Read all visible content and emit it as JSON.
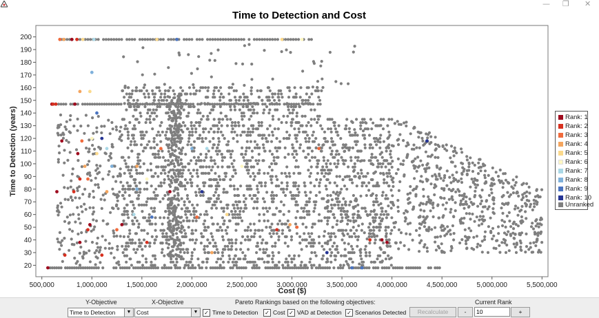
{
  "window": {
    "minimize_glyph": "—",
    "restore_glyph": "❐",
    "close_glyph": "✕"
  },
  "chart_data": {
    "type": "scatter",
    "title": "Time to Detection and Cost",
    "xlabel": "Cost ($)",
    "ylabel": "Time to Detection (years)",
    "xlim": [
      440000,
      5560000
    ],
    "ylim": [
      11,
      209
    ],
    "x_ticks": [
      500000,
      1000000,
      1500000,
      2000000,
      2500000,
      3000000,
      3500000,
      4000000,
      4500000,
      5000000,
      5500000
    ],
    "x_tick_labels": [
      "500,000",
      "1,000,000",
      "1,500,000",
      "2,000,000",
      "2,500,000",
      "3,000,000",
      "3,500,000",
      "4,000,000",
      "4,500,000",
      "5,000,000",
      "5,500,000"
    ],
    "y_ticks": [
      20,
      30,
      40,
      50,
      60,
      70,
      80,
      90,
      100,
      110,
      120,
      130,
      140,
      150,
      160,
      170,
      180,
      190,
      200
    ],
    "grid": false,
    "legend_position": "right",
    "series": [
      {
        "name": "Rank: 1",
        "color": "#9e0b1e",
        "points": [
          [
            560000,
            18
          ],
          [
            600000,
            147
          ],
          [
            650000,
            78
          ],
          [
            700000,
            118
          ],
          [
            800000,
            198
          ],
          [
            830000,
            147
          ],
          [
            860000,
            108
          ],
          [
            880000,
            38
          ],
          [
            980000,
            52
          ],
          [
            1300000,
            52
          ],
          [
            1780000,
            78
          ],
          [
            3900000,
            40
          ],
          [
            3950000,
            38
          ]
        ]
      },
      {
        "name": "Rank: 2",
        "color": "#d7301f",
        "points": [
          [
            610000,
            147
          ],
          [
            640000,
            147
          ],
          [
            730000,
            28
          ],
          [
            820000,
            78
          ],
          [
            850000,
            198
          ],
          [
            880000,
            88
          ],
          [
            960000,
            48
          ],
          [
            1100000,
            28
          ],
          [
            1550000,
            38
          ],
          [
            2850000,
            48
          ],
          [
            3780000,
            40
          ]
        ]
      },
      {
        "name": "Rank: 3",
        "color": "#f06a3c",
        "points": [
          [
            680000,
            198
          ],
          [
            900000,
            118
          ],
          [
            960000,
            88
          ],
          [
            1250000,
            48
          ],
          [
            1690000,
            112
          ],
          [
            2050000,
            58
          ],
          [
            3050000,
            50
          ],
          [
            3270000,
            112
          ]
        ]
      },
      {
        "name": "Rank: 4",
        "color": "#f4a55e",
        "points": [
          [
            720000,
            198
          ],
          [
            880000,
            157
          ],
          [
            930000,
            98
          ],
          [
            1150000,
            78
          ],
          [
            1450000,
            98
          ],
          [
            2200000,
            30
          ],
          [
            2980000,
            52
          ]
        ]
      },
      {
        "name": "Rank: 5",
        "color": "#fbd98c",
        "points": [
          [
            910000,
            198
          ],
          [
            980000,
            157
          ],
          [
            1050000,
            108
          ],
          [
            1650000,
            198
          ],
          [
            2350000,
            60
          ],
          [
            2900000,
            198
          ]
        ]
      },
      {
        "name": "Rank: 6",
        "color": "#fff7c2",
        "points": [
          [
            1000000,
            120
          ],
          [
            1550000,
            88
          ],
          [
            2500000,
            98
          ],
          [
            3100000,
            198
          ]
        ]
      },
      {
        "name": "Rank: 7",
        "color": "#aad8e6",
        "points": [
          [
            1020000,
            198
          ],
          [
            1150000,
            112
          ],
          [
            1420000,
            60
          ],
          [
            2150000,
            112
          ]
        ]
      },
      {
        "name": "Rank: 8",
        "color": "#7fb1db",
        "points": [
          [
            1000000,
            172
          ],
          [
            1200000,
            98
          ],
          [
            1450000,
            80
          ],
          [
            2000000,
            112
          ]
        ]
      },
      {
        "name": "Rank: 9",
        "color": "#4a74c0",
        "points": [
          [
            1050000,
            140
          ],
          [
            1600000,
            58
          ],
          [
            1850000,
            198
          ],
          [
            3600000,
            18
          ],
          [
            3700000,
            18
          ]
        ]
      },
      {
        "name": "Rank: 10",
        "color": "#253494",
        "points": [
          [
            1100000,
            120
          ],
          [
            2100000,
            78
          ],
          [
            3350000,
            30
          ],
          [
            4350000,
            118
          ]
        ]
      },
      {
        "name": "Unranked",
        "color": "#7f7f7f",
        "note": "several thousand grey points, dense band 1,300,000–4,000,000 and 20–160 years; horizontal rows at 18, 147 and 198 years"
      }
    ]
  },
  "controls": {
    "y_objective_label": "Y-Objective",
    "y_objective_value": "Time to Detection",
    "x_objective_label": "X-Objective",
    "x_objective_value": "Cost",
    "pareto_label": "Pareto Rankings based on the following objectives:",
    "checkboxes": [
      {
        "label": "Time to Detection",
        "checked": true
      },
      {
        "label": "Cost",
        "checked": true
      },
      {
        "label": "VAD at Detection",
        "checked": true
      },
      {
        "label": "Scenarios Detected",
        "checked": true
      }
    ],
    "recalculate_label": "Recalculate",
    "current_rank_label": "Current Rank",
    "decrement_label": "-",
    "current_rank_value": "10",
    "increment_label": "+"
  }
}
